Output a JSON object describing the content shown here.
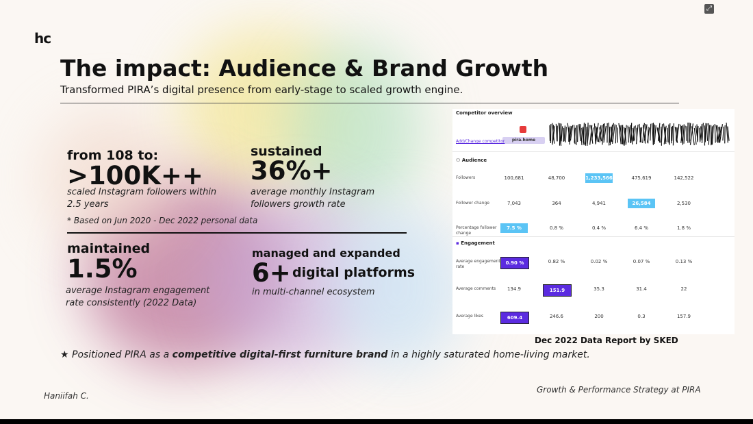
{
  "logo_text": "hc",
  "expand_icon": "expand-icon",
  "title": "The impact: Audience & Brand Growth",
  "subtitle": "Transformed PIRA’s digital presence from early-stage to scaled growth engine.",
  "stats": {
    "followers": {
      "pre": "from 108 to:",
      "big": ">100K++",
      "desc": "scaled Instagram followers within 2.5 years"
    },
    "growth": {
      "pre": "sustained",
      "big": "36%+",
      "desc": "average monthly Instagram followers growth rate"
    },
    "note": "* Based on Jun 2020 - Dec 2022 personal data",
    "engagement": {
      "pre": "maintained",
      "big": "1.5%",
      "desc": "average Instagram engagement rate consistently (2022 Data)"
    },
    "platforms": {
      "pre": "managed and expanded",
      "big": "6+",
      "big_suffix": "digital platforms",
      "desc": "in multi-channel ecosystem"
    }
  },
  "report": {
    "header": "Competitor overview",
    "add_link": "Add/Change competitor",
    "brand_tag": "pira.home",
    "audience_label": "Audience",
    "engagement_label": "Engagement",
    "rows": [
      {
        "label": "Followers",
        "values": [
          "100,681",
          "48,700",
          "1,233,566",
          "475,619",
          "142,522"
        ],
        "highlight": 2
      },
      {
        "label": "Follower change",
        "values": [
          "7,043",
          "364",
          "4,941",
          "26,584",
          "2,530"
        ],
        "highlight": 3
      },
      {
        "label": "Percentage follower change",
        "values": [
          "7.5 %",
          "0.8 %",
          "0.4 %",
          "6.4 %",
          "1.8 %"
        ],
        "highlight": 0
      },
      {
        "label": "Average engagement rate",
        "values": [
          "0.90 %",
          "0.82 %",
          "0.02 %",
          "0.07 %",
          "0.13 %"
        ],
        "highlight": 0
      },
      {
        "label": "Average comments",
        "values": [
          "134.9",
          "151.9",
          "35.3",
          "31.4",
          "22"
        ],
        "highlight": 1
      },
      {
        "label": "Average likes",
        "values": [
          "609.4",
          "246.6",
          "200",
          "0.3",
          "157.9"
        ],
        "highlight": 0
      }
    ]
  },
  "caption": "Dec 2022 Data Report by SKED",
  "star_line": {
    "prefix": "★ Positioned PIRA as a ",
    "bold": "competitive digital-first furniture brand",
    "suffix": " in a highly saturated home-living market."
  },
  "footer_left": "Haniifah C.",
  "footer_right": "Growth & Performance Strategy at PIRA"
}
